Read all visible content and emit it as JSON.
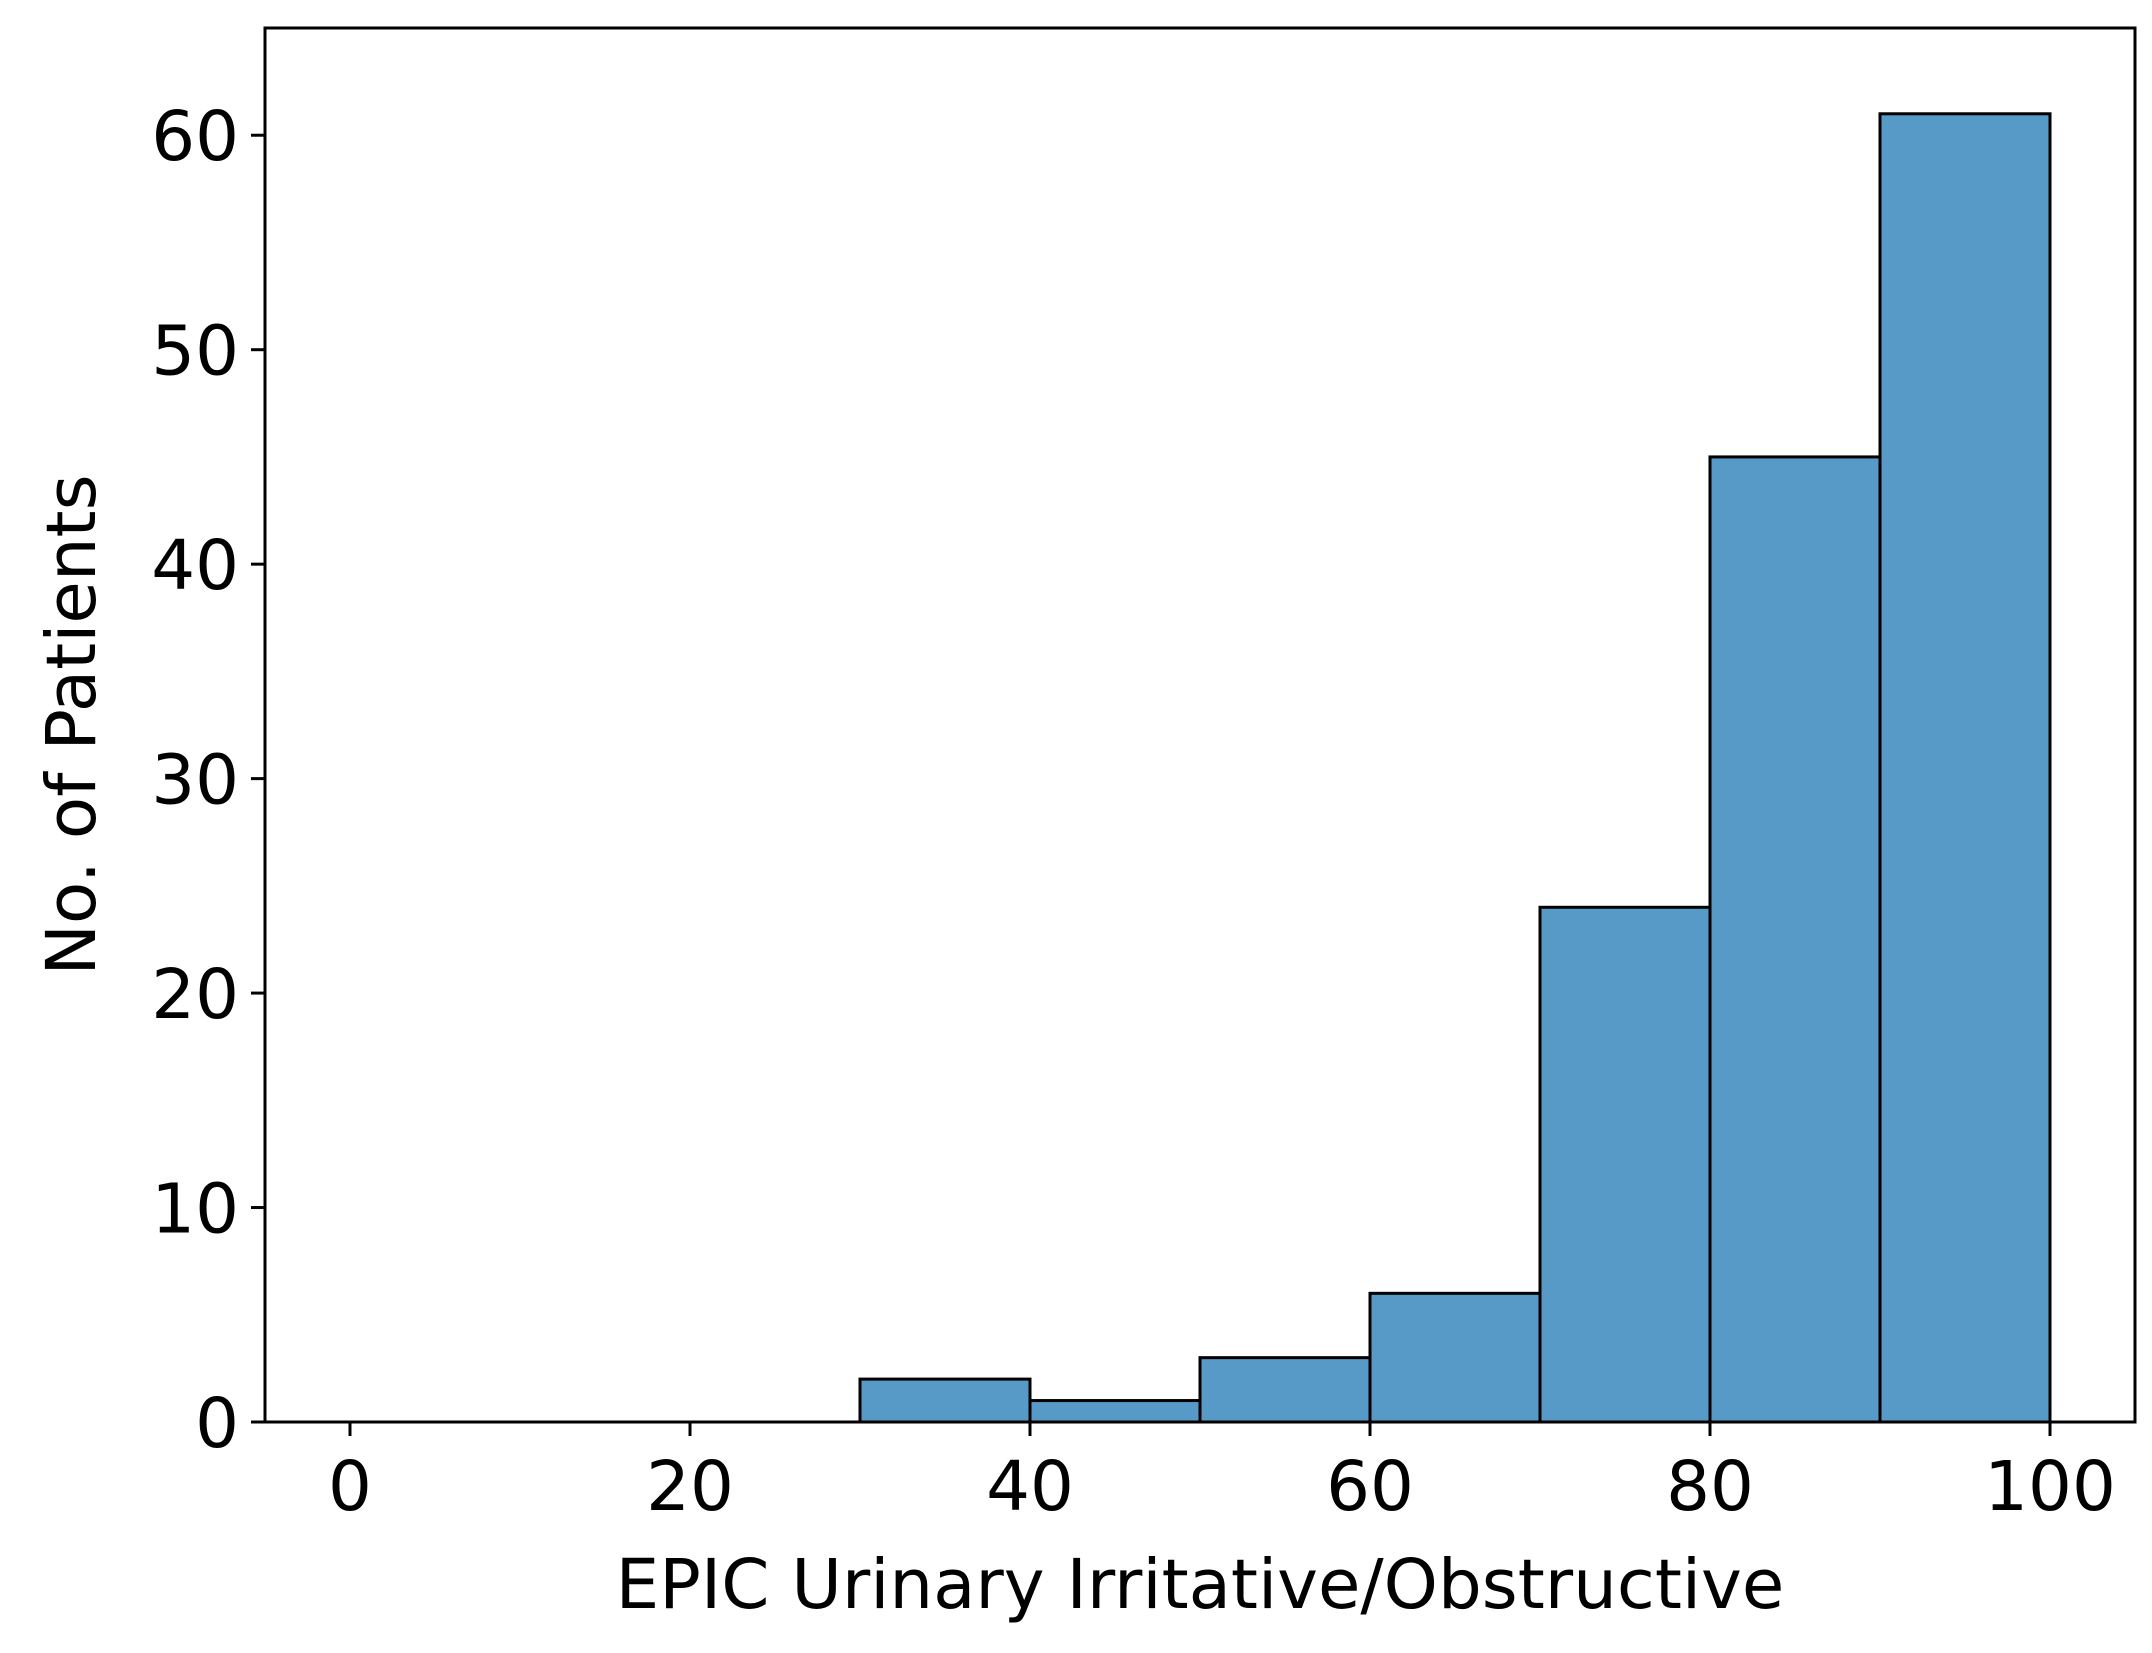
{
  "chart_data": {
    "type": "bar",
    "histogram": true,
    "title": "",
    "xlabel": "EPIC Urinary Irritative/Obstructive",
    "ylabel": "No. of Patients",
    "xlim": [
      -5,
      105
    ],
    "ylim": [
      0,
      65
    ],
    "xticks": [
      0,
      20,
      40,
      60,
      80,
      100
    ],
    "yticks": [
      0,
      10,
      20,
      30,
      40,
      50,
      60
    ],
    "bins": [
      {
        "x0": 0,
        "x1": 10,
        "count": 0
      },
      {
        "x0": 10,
        "x1": 20,
        "count": 0
      },
      {
        "x0": 20,
        "x1": 30,
        "count": 0
      },
      {
        "x0": 30,
        "x1": 40,
        "count": 2
      },
      {
        "x0": 40,
        "x1": 50,
        "count": 1
      },
      {
        "x0": 50,
        "x1": 60,
        "count": 3
      },
      {
        "x0": 60,
        "x1": 70,
        "count": 6
      },
      {
        "x0": 70,
        "x1": 80,
        "count": 24
      },
      {
        "x0": 80,
        "x1": 90,
        "count": 45
      },
      {
        "x0": 90,
        "x1": 100,
        "count": 61
      }
    ],
    "bar_color": "#579ac7",
    "edge_color": "#000000",
    "grid": false,
    "legend": "none"
  }
}
